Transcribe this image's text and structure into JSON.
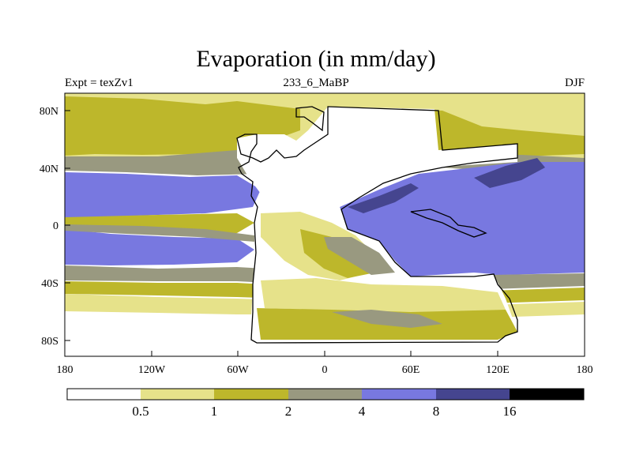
{
  "title": "Evaporation (in mm/day)",
  "subtitle_left": "Expt = texZv1",
  "subtitle_center": "233_6_MaBP",
  "subtitle_right": "DJF",
  "x_ticks": [
    "180",
    "120W",
    "60W",
    "0",
    "60E",
    "120E",
    "180"
  ],
  "y_ticks": [
    "80N",
    "40N",
    "0",
    "40S",
    "80S"
  ],
  "colorbar": {
    "levels": [
      "0.5",
      "1",
      "2",
      "4",
      "8",
      "16"
    ],
    "colors": [
      "#ffffff",
      "#e6e28a",
      "#bdb72b",
      "#999980",
      "#7878e0",
      "#45458f",
      "#000000"
    ]
  },
  "chart_data": {
    "type": "heatmap",
    "title": "Evaporation (in mm/day)",
    "x_range": [
      -180,
      180
    ],
    "y_range": [
      -90,
      90
    ],
    "contour_levels": [
      0.5,
      1,
      2,
      4,
      8,
      16
    ],
    "x_ticks": [
      "180",
      "120W",
      "60W",
      "0",
      "60E",
      "120E",
      "180"
    ],
    "y_ticks": [
      "80N",
      "40N",
      "0",
      "40S",
      "80S"
    ]
  }
}
